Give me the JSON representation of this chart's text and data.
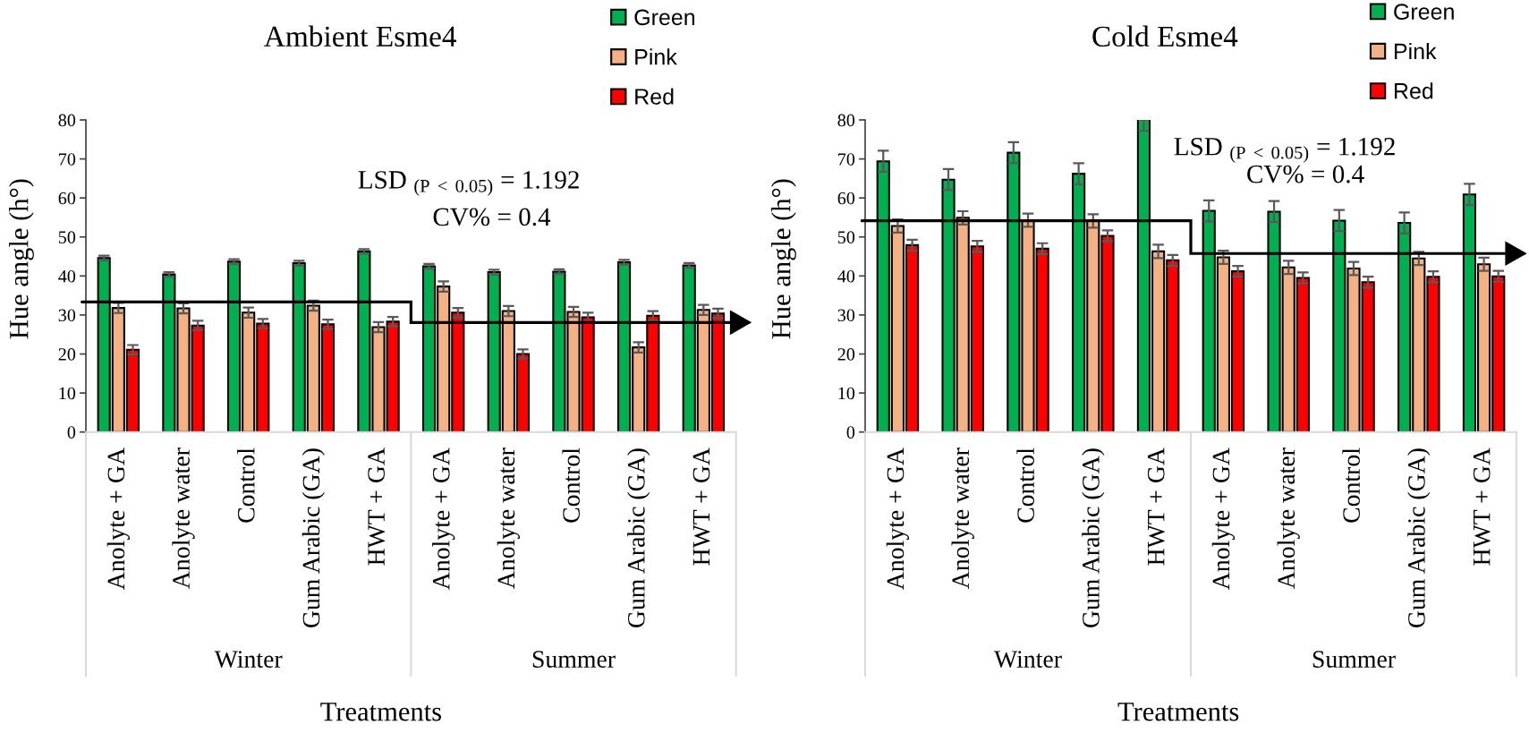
{
  "chart_data": [
    {
      "type": "bar",
      "title": "Ambient Esme4",
      "xlabel": "Treatments",
      "ylabel": "Hue angle (h°)",
      "categories": [
        "Anolyte + GA",
        "Anolyte water",
        "Control",
        "Gum Arabic (GA)",
        "HWT + GA",
        "Anolyte + GA",
        "Anolyte water",
        "Control",
        "Gum Arabic (GA)",
        "HWT + GA"
      ],
      "series": [
        {
          "name": "Green",
          "color": "#00b050",
          "values": [
            44.6,
            40.4,
            43.7,
            43.3,
            46.3,
            42.5,
            41.0,
            41.1,
            43.5,
            42.7
          ],
          "errors": [
            0.6,
            0.6,
            0.6,
            0.6,
            0.6,
            0.6,
            0.6,
            0.6,
            0.6,
            0.6
          ]
        },
        {
          "name": "Pink",
          "color": "#f4b183",
          "values": [
            31.8,
            31.7,
            30.6,
            32.4,
            26.9,
            37.3,
            31.0,
            30.8,
            21.7,
            31.3
          ],
          "errors": [
            1.3,
            1.3,
            1.3,
            1.3,
            1.3,
            1.3,
            1.3,
            1.3,
            1.3,
            1.3
          ]
        },
        {
          "name": "Red",
          "color": "#ff0000",
          "values": [
            21.1,
            27.3,
            27.8,
            27.6,
            28.3,
            30.6,
            20.0,
            29.4,
            29.8,
            30.4
          ],
          "errors": [
            1.2,
            1.2,
            1.2,
            1.2,
            1.2,
            1.2,
            1.2,
            1.2,
            1.2,
            1.2
          ]
        }
      ],
      "ylim": [
        0,
        80
      ],
      "yticks": [
        0,
        10,
        20,
        30,
        40,
        50,
        60,
        70,
        80
      ],
      "legend": "top right",
      "annotations": [
        "LSD $_{(P < 0.05)}$ = 1.192",
        "CV% = 0.4",
        "Winter",
        "Summer"
      ]
    },
    {
      "type": "bar",
      "title": "Cold Esme4",
      "xlabel": "Treatments",
      "ylabel": "Hue angle (h°)",
      "categories": [
        "Anolyte + GA",
        "Anolyte water",
        "Control",
        "Gum Arabic (GA)",
        "HWT + GA",
        "Anolyte + GA",
        "Anolyte water",
        "Control",
        "Gum Arabic (GA)",
        "HWT + GA"
      ],
      "series": [
        {
          "name": "Green",
          "color": "#00b050",
          "values": [
            69.4,
            64.7,
            71.6,
            66.2,
            80,
            56.7,
            56.5,
            54.2,
            53.6,
            60.9
          ],
          "errors": [
            2.7,
            2.7,
            2.7,
            2.7,
            [
              77.2,
              80
            ],
            2.7,
            2.7,
            2.7,
            2.7,
            2.7
          ]
        },
        {
          "name": "Pink",
          "color": "#f4b183",
          "values": [
            52.8,
            54.9,
            54.3,
            54.1,
            46.3,
            44.8,
            42.2,
            41.9,
            44.5,
            43.0
          ],
          "errors": [
            1.7,
            1.7,
            1.7,
            1.7,
            1.7,
            1.7,
            1.7,
            1.7,
            1.7,
            1.7
          ]
        },
        {
          "name": "Red",
          "color": "#ff0000",
          "values": [
            47.9,
            47.6,
            47.0,
            50.3,
            44.0,
            41.2,
            39.5,
            38.4,
            39.8,
            39.9
          ],
          "errors": [
            1.4,
            1.4,
            1.4,
            1.4,
            1.4,
            1.4,
            1.4,
            1.4,
            1.4,
            1.4
          ]
        }
      ],
      "ylim": [
        0,
        80
      ],
      "yticks": [
        0,
        10,
        20,
        30,
        40,
        50,
        60,
        70,
        80
      ],
      "legend": "top right",
      "annotations": [
        "LSD $_{(P < 0.05)}$ = 1.192",
        "CV% = 0.4",
        "Winter",
        "Summer"
      ]
    }
  ]
}
